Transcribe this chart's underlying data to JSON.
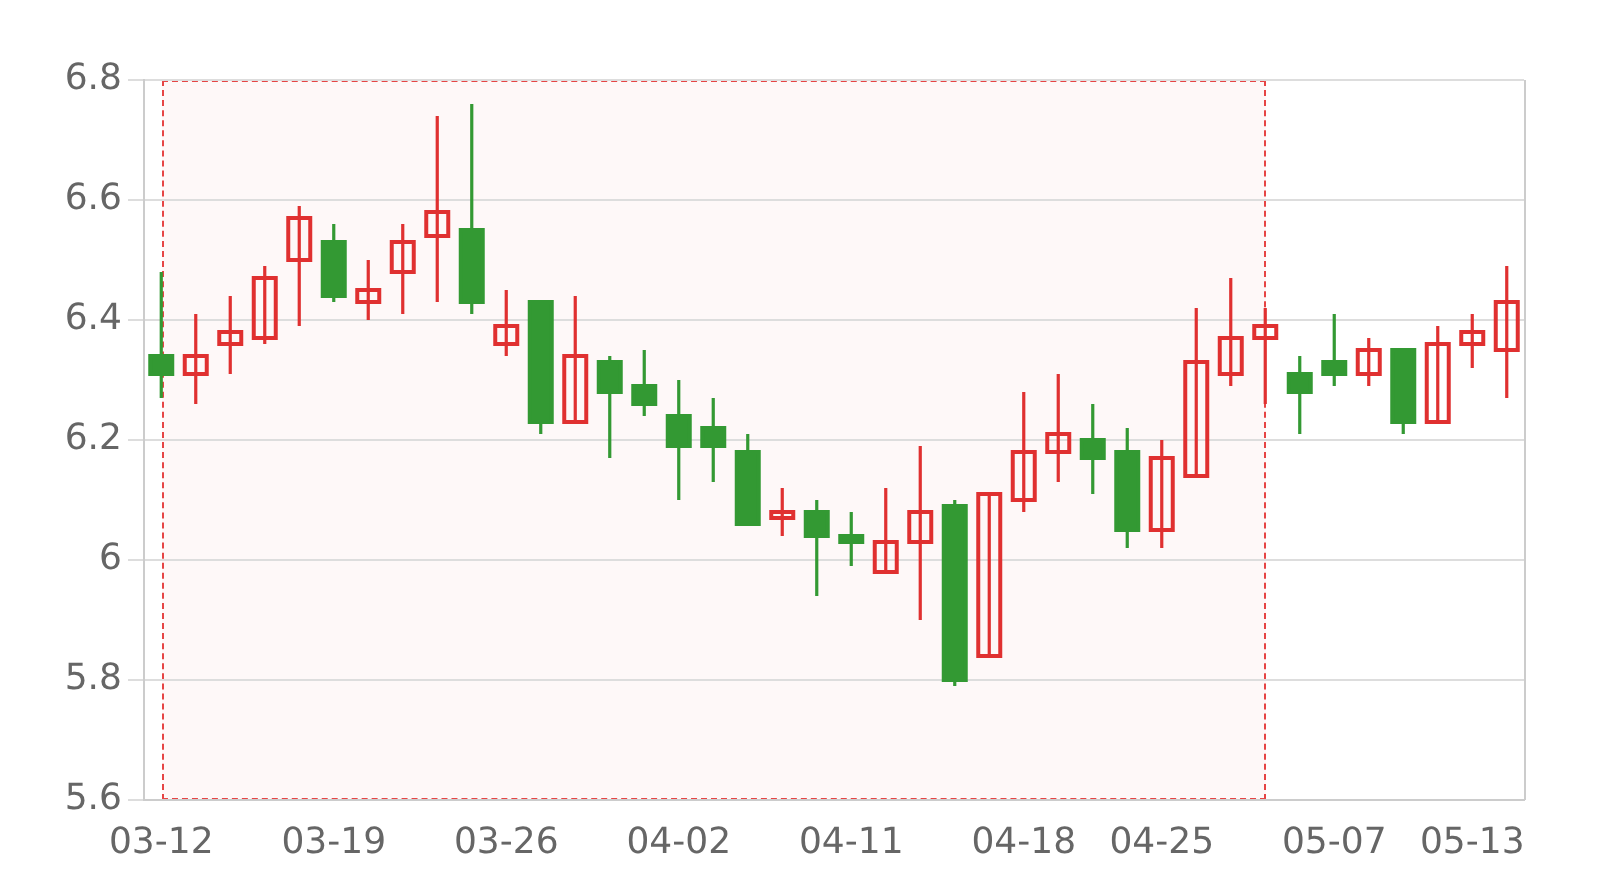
{
  "chart_data": {
    "type": "candlestick",
    "categories": [
      "03-12",
      null,
      null,
      null,
      null,
      "03-19",
      null,
      null,
      null,
      null,
      "03-26",
      null,
      null,
      null,
      null,
      "04-02",
      null,
      null,
      null,
      null,
      "04-11",
      null,
      null,
      null,
      null,
      "04-18",
      null,
      null,
      null,
      "04-25",
      null,
      null,
      null,
      null,
      "05-07",
      null,
      null,
      null,
      "05-13",
      null
    ],
    "ohlc": [
      [
        6.34,
        6.48,
        6.27,
        6.31
      ],
      [
        6.31,
        6.41,
        6.26,
        6.34
      ],
      [
        6.36,
        6.44,
        6.31,
        6.38
      ],
      [
        6.37,
        6.49,
        6.36,
        6.47
      ],
      [
        6.5,
        6.59,
        6.39,
        6.57
      ],
      [
        6.53,
        6.56,
        6.43,
        6.44
      ],
      [
        6.43,
        6.5,
        6.4,
        6.45
      ],
      [
        6.48,
        6.56,
        6.41,
        6.53
      ],
      [
        6.54,
        6.74,
        6.43,
        6.58
      ],
      [
        6.55,
        6.76,
        6.41,
        6.43
      ],
      [
        6.36,
        6.45,
        6.34,
        6.39
      ],
      [
        6.43,
        6.43,
        6.21,
        6.23
      ],
      [
        6.23,
        6.44,
        6.23,
        6.34
      ],
      [
        6.33,
        6.34,
        6.17,
        6.28
      ],
      [
        6.29,
        6.35,
        6.24,
        6.26
      ],
      [
        6.24,
        6.3,
        6.1,
        6.19
      ],
      [
        6.22,
        6.27,
        6.13,
        6.19
      ],
      [
        6.18,
        6.21,
        6.06,
        6.06
      ],
      [
        6.07,
        6.12,
        6.04,
        6.08
      ],
      [
        6.08,
        6.1,
        5.94,
        6.04
      ],
      [
        6.04,
        6.08,
        5.99,
        6.03
      ],
      [
        5.98,
        6.12,
        5.98,
        6.03
      ],
      [
        6.03,
        6.19,
        5.9,
        6.08
      ],
      [
        6.09,
        6.1,
        5.79,
        5.8
      ],
      [
        5.84,
        6.11,
        5.84,
        6.11
      ],
      [
        6.1,
        6.28,
        6.08,
        6.18
      ],
      [
        6.18,
        6.31,
        6.13,
        6.21
      ],
      [
        6.2,
        6.26,
        6.11,
        6.17
      ],
      [
        6.18,
        6.22,
        6.02,
        6.05
      ],
      [
        6.05,
        6.2,
        6.02,
        6.17
      ],
      [
        6.14,
        6.42,
        6.14,
        6.33
      ],
      [
        6.31,
        6.47,
        6.29,
        6.37
      ],
      [
        6.37,
        6.42,
        6.26,
        6.39
      ],
      [
        6.31,
        6.34,
        6.21,
        6.28
      ],
      [
        6.33,
        6.41,
        6.29,
        6.31
      ],
      [
        6.31,
        6.37,
        6.29,
        6.35
      ],
      [
        6.35,
        6.35,
        6.21,
        6.23
      ],
      [
        6.23,
        6.39,
        6.23,
        6.36
      ],
      [
        6.36,
        6.41,
        6.32,
        6.38
      ],
      [
        6.35,
        6.49,
        6.27,
        6.43
      ]
    ],
    "colors": [
      "#339933",
      "#e03030",
      "#e03030",
      "#e03030",
      "#e03030",
      "#339933",
      "#e03030",
      "#e03030",
      "#e03030",
      "#339933",
      "#e03030",
      "#339933",
      "#e03030",
      "#339933",
      "#339933",
      "#339933",
      "#339933",
      "#339933",
      "#e03030",
      "#339933",
      "#339933",
      "#e03030",
      "#e03030",
      "#339933",
      "#e03030",
      "#e03030",
      "#e03030",
      "#339933",
      "#339933",
      "#e03030",
      "#e03030",
      "#e03030",
      "#e03030",
      "#339933",
      "#339933",
      "#e03030",
      "#339933",
      "#e03030",
      "#e03030",
      "#e03030"
    ],
    "ylim": [
      5.6,
      6.8
    ],
    "yticks": [
      5.6,
      5.8,
      6,
      6.2,
      6.4,
      6.6,
      6.8
    ],
    "grid": "y"
  }
}
